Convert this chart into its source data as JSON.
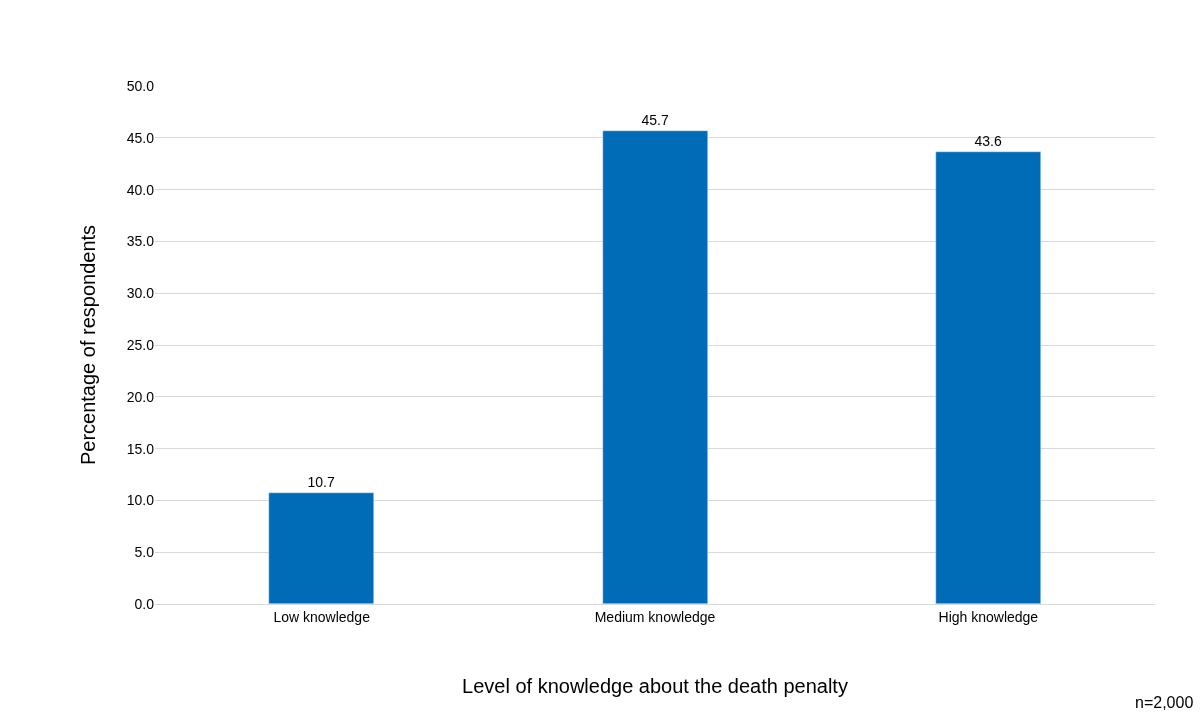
{
  "chart_data": {
    "type": "bar",
    "xlabel": "Level of knowledge about the death penalty",
    "ylabel": "Percentage of respondents",
    "categories": [
      "Low knowledge",
      "Medium knowledge",
      "High knowledge"
    ],
    "values": [
      10.7,
      45.7,
      43.6
    ],
    "color": "#006cb7",
    "ylim": [
      0,
      50
    ],
    "yticks": [
      {
        "value": 0,
        "label": "0.0"
      },
      {
        "value": 5,
        "label": "5.0"
      },
      {
        "value": 10,
        "label": "10.0"
      },
      {
        "value": 15,
        "label": "15.0"
      },
      {
        "value": 20,
        "label": "20.0"
      },
      {
        "value": 25,
        "label": "25.0"
      },
      {
        "value": 30,
        "label": "30.0"
      },
      {
        "value": 35,
        "label": "35.0"
      },
      {
        "value": 40,
        "label": "40.0"
      },
      {
        "value": 45,
        "label": "45.0"
      },
      {
        "value": 50,
        "label": "50.0"
      }
    ],
    "grid": "y",
    "data_labels": true,
    "annotations": [
      "n=2,000"
    ]
  }
}
